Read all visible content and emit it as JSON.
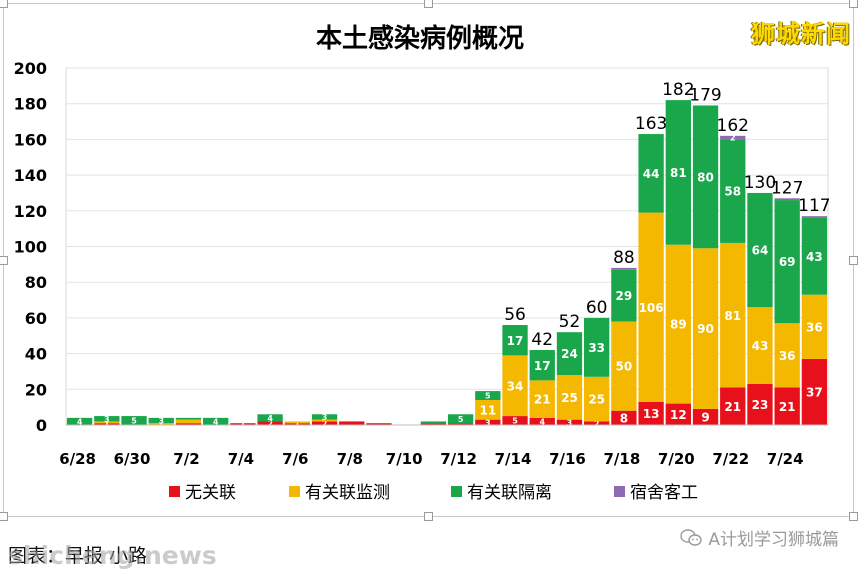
{
  "watermark_top": "狮城新闻",
  "caption": "图表：早报 小路",
  "watermark_bottom": "shicheng.news",
  "wechat_label": "A计划学习狮城篇",
  "colors": {
    "unlinked": "#e8101a",
    "monitored": "#f5b800",
    "quarantined": "#1aa64a",
    "dormitory": "#8e6bb0"
  },
  "chart_data": {
    "type": "bar",
    "stacked": true,
    "title": "本土感染病例概况",
    "ylim": [
      0,
      200
    ],
    "yticks": [
      0,
      20,
      40,
      60,
      80,
      100,
      120,
      140,
      160,
      180,
      200
    ],
    "grid": true,
    "legend_position": "bottom",
    "categories": [
      "6/28",
      "6/29",
      "6/30",
      "7/1",
      "7/2",
      "7/3",
      "7/4",
      "7/5",
      "7/6",
      "7/7",
      "7/8",
      "7/9",
      "7/10",
      "7/11",
      "7/12",
      "7/13",
      "7/14",
      "7/15",
      "7/16",
      "7/17",
      "7/18",
      "7/19",
      "7/20",
      "7/21",
      "7/22",
      "7/23",
      "7/24",
      "7/25"
    ],
    "xtick_labels": [
      "6/28",
      "",
      "6/30",
      "",
      "7/2",
      "",
      "7/4",
      "",
      "7/6",
      "",
      "7/8",
      "",
      "7/10",
      "",
      "7/12",
      "",
      "7/14",
      "",
      "7/16",
      "",
      "7/18",
      "",
      "7/20",
      "",
      "7/22",
      "",
      "7/24",
      ""
    ],
    "series": [
      {
        "name": "无关联",
        "color_key": "unlinked",
        "values": [
          0,
          1,
          0,
          0,
          1,
          0,
          1,
          2,
          1,
          2,
          2,
          1,
          0,
          1,
          1,
          3,
          5,
          4,
          3,
          2,
          8,
          13,
          12,
          9,
          21,
          23,
          21,
          37
        ]
      },
      {
        "name": "有关联监测",
        "color_key": "monitored",
        "values": [
          0,
          1,
          0,
          1,
          2,
          0,
          0,
          0,
          1,
          1,
          0,
          0,
          0,
          0,
          0,
          11,
          34,
          21,
          25,
          25,
          50,
          106,
          89,
          90,
          81,
          43,
          36,
          36
        ]
      },
      {
        "name": "有关联隔离",
        "color_key": "quarantined",
        "values": [
          4,
          3,
          5,
          3,
          1,
          4,
          0,
          4,
          0,
          3,
          0,
          0,
          0,
          1,
          5,
          5,
          17,
          17,
          24,
          33,
          29,
          44,
          81,
          80,
          58,
          64,
          69,
          43
        ]
      },
      {
        "name": "宿舍客工",
        "color_key": "dormitory",
        "values": [
          0,
          0,
          0,
          0,
          0,
          0,
          0,
          0,
          0,
          0,
          0,
          0,
          0,
          0,
          0,
          0,
          0,
          0,
          0,
          0,
          1,
          0,
          0,
          0,
          2,
          0,
          1,
          1
        ]
      }
    ],
    "segment_labels": {
      "有关联隔离": {
        "0": "4",
        "1": "3",
        "2": "5",
        "3": "3",
        "5": "4",
        "7": "4",
        "9": "3",
        "14": "5",
        "15": "5",
        "16": "17",
        "17": "17",
        "18": "24",
        "19": "33",
        "20": "29",
        "21": "44",
        "22": "81",
        "23": "80",
        "24": "58",
        "25": "64",
        "26": "69",
        "27": "43"
      },
      "有关联监测": {
        "1": "1",
        "3": "1",
        "15": "11",
        "16": "34",
        "17": "21",
        "18": "25",
        "19": "25",
        "20": "50",
        "21": "106",
        "22": "89",
        "23": "90",
        "24": "81",
        "25": "43",
        "26": "36",
        "27": "36"
      },
      "无关联": {
        "6": "1",
        "7": "2",
        "8": "1",
        "9": "2",
        "15": "3",
        "16": "5",
        "17": "4",
        "18": "3",
        "19": "2",
        "20": "8",
        "21": "13",
        "22": "12",
        "23": "9",
        "24": "21",
        "25": "23",
        "26": "21",
        "27": "37"
      },
      "宿舍客工": {
        "24": "2"
      }
    },
    "totals_labels": {
      "16": "56",
      "17": "42",
      "18": "52",
      "19": "60",
      "20": "88",
      "21": "163",
      "22": "182",
      "23": "179",
      "24": "162",
      "25": "130",
      "26": "127",
      "27": "117"
    }
  }
}
